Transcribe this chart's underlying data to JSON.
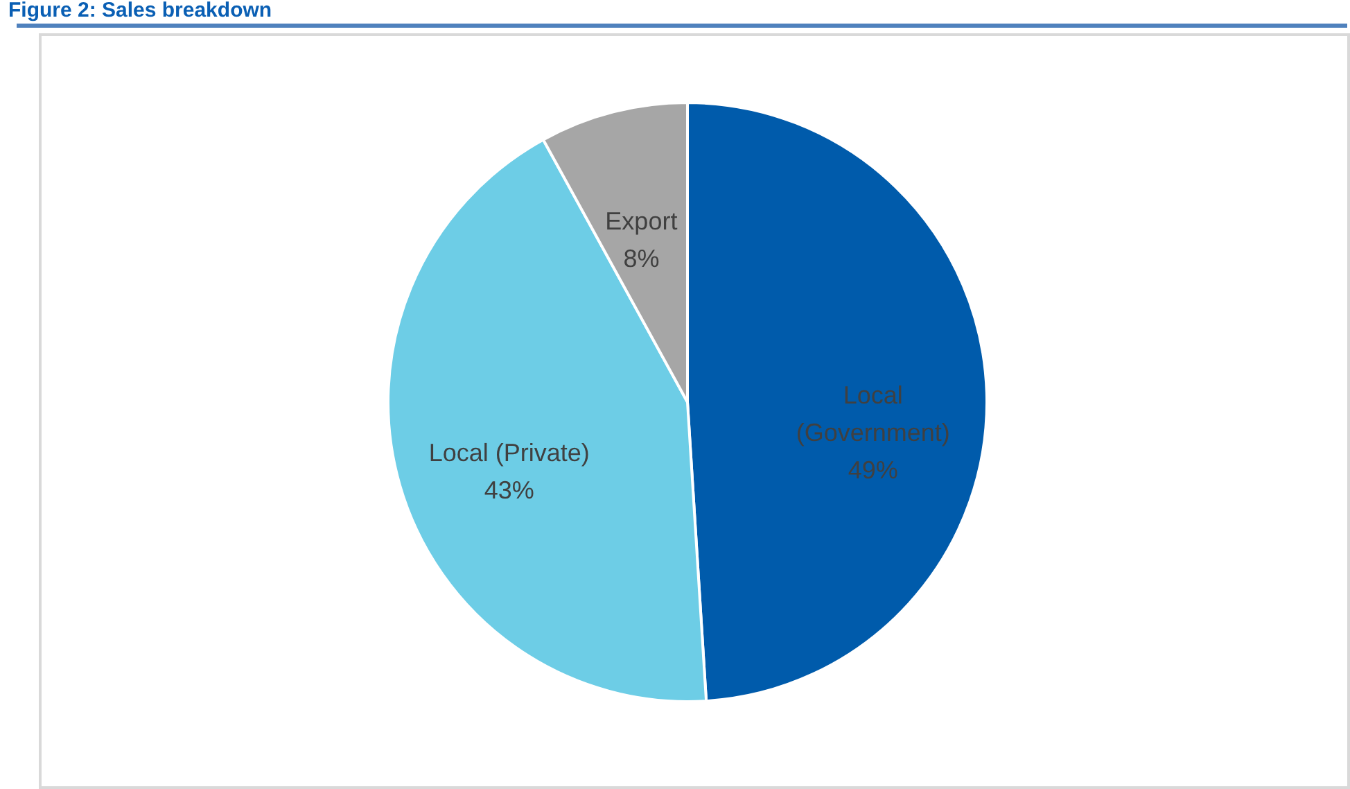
{
  "chart_data": {
    "type": "pie",
    "title": "Figure 2: Sales breakdown",
    "categories": [
      "Local (Government)",
      "Local (Private)",
      "Export"
    ],
    "values": [
      49,
      43,
      8
    ],
    "colors": [
      "#005bab",
      "#6dcde6",
      "#a6a6a6"
    ],
    "value_labels": [
      "49%",
      "43%",
      "8%"
    ]
  }
}
